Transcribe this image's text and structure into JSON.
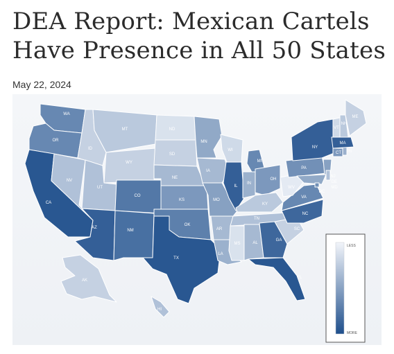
{
  "article": {
    "headline_line1": "DEA Report: Mexican Cartels",
    "headline_line2": "Have Presence in All 50 States",
    "date": "May 22, 2024"
  },
  "legend": {
    "top_label": "LESS",
    "bottom_label": "MORE",
    "light_color": "#eef2f8",
    "dark_color": "#1f4f8c"
  },
  "states": {
    "WA": {
      "label": "WA",
      "shade": 0.65
    },
    "OR": {
      "label": "OR",
      "shade": 0.65
    },
    "CA": {
      "label": "CA",
      "shade": 0.95
    },
    "NV": {
      "label": "NV",
      "shade": 0.3
    },
    "ID": {
      "label": "ID",
      "shade": 0.2
    },
    "MT": {
      "label": "MT",
      "shade": 0.25
    },
    "WY": {
      "label": "WY",
      "shade": 0.2
    },
    "UT": {
      "label": "UT",
      "shade": 0.3
    },
    "AZ": {
      "label": "AZ",
      "shade": 0.9
    },
    "CO": {
      "label": "CO",
      "shade": 0.75
    },
    "NM": {
      "label": "NM",
      "shade": 0.8
    },
    "ND": {
      "label": "ND",
      "shade": 0.1
    },
    "SD": {
      "label": "SD",
      "shade": 0.2
    },
    "NE": {
      "label": "NE",
      "shade": 0.35
    },
    "KS": {
      "label": "KS",
      "shade": 0.55
    },
    "OK": {
      "label": "OK",
      "shade": 0.7
    },
    "TX": {
      "label": "TX",
      "shade": 0.95
    },
    "MN": {
      "label": "MN",
      "shade": 0.45
    },
    "IA": {
      "label": "IA",
      "shade": 0.35
    },
    "MO": {
      "label": "MO",
      "shade": 0.5
    },
    "AR": {
      "label": "AR",
      "shade": 0.35
    },
    "LA": {
      "label": "LA",
      "shade": 0.4
    },
    "WI": {
      "label": "WI",
      "shade": 0.15
    },
    "IL": {
      "label": "IL",
      "shade": 0.9
    },
    "MI": {
      "label": "MI",
      "shade": 0.65
    },
    "IN": {
      "label": "IN",
      "shade": 0.4
    },
    "OH": {
      "label": "OH",
      "shade": 0.55
    },
    "KY": {
      "label": "KY",
      "shade": 0.25
    },
    "TN": {
      "label": "TN",
      "shade": 0.3
    },
    "MS": {
      "label": "MS",
      "shade": 0.1
    },
    "AL": {
      "label": "AL",
      "shade": 0.35
    },
    "GA": {
      "label": "GA",
      "shade": 0.85
    },
    "FL": {
      "label": "FL",
      "shade": 0.95
    },
    "SC": {
      "label": "SC",
      "shade": 0.2
    },
    "NC": {
      "label": "NC",
      "shade": 0.85
    },
    "VA": {
      "label": "VA",
      "shade": 0.65
    },
    "WV": {
      "label": "WV",
      "shade": 0.05
    },
    "PA": {
      "label": "PA",
      "shade": 0.6
    },
    "NY": {
      "label": "NY",
      "shade": 0.9
    },
    "NJ": {
      "label": "NJ",
      "shade": 0.5
    },
    "DE": {
      "label": "DE",
      "shade": 0.3
    },
    "MD": {
      "label": "MD",
      "shade": 0.45
    },
    "DC": {
      "label": "DC",
      "shade": 0.6
    },
    "CT": {
      "label": "CT",
      "shade": 0.55
    },
    "RI": {
      "label": "RI",
      "shade": 0.4
    },
    "MA": {
      "label": "MA",
      "shade": 0.9
    },
    "VT": {
      "label": "VT",
      "shade": 0.15
    },
    "NH": {
      "label": "NH",
      "shade": 0.25
    },
    "ME": {
      "label": "ME",
      "shade": 0.2
    },
    "AK": {
      "label": "AK",
      "shade": 0.2
    },
    "HI": {
      "label": "HI",
      "shade": 0.3
    }
  }
}
